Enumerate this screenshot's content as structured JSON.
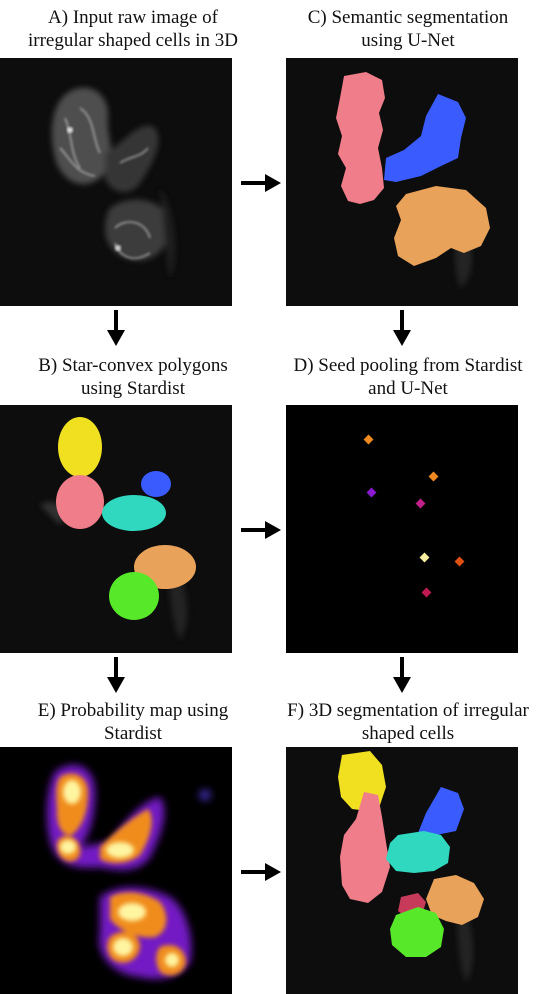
{
  "panels": [
    {
      "id": "A",
      "caption": [
        "A)  Input raw image of",
        "irregular shaped cells in 3D"
      ]
    },
    {
      "id": "C",
      "caption": [
        "C) Semantic segmentation",
        "using U-Net"
      ]
    },
    {
      "id": "B",
      "caption": [
        "B) Star-convex polygons",
        "using Stardist"
      ]
    },
    {
      "id": "D",
      "caption": [
        "D) Seed pooling from Stardist",
        "and U-Net"
      ]
    },
    {
      "id": "E",
      "caption": [
        "E) Probability map using",
        "Stardist"
      ]
    },
    {
      "id": "F",
      "caption": [
        "F) 3D segmentation of irregular",
        "shaped cells"
      ]
    }
  ],
  "colors": {
    "pink": "#f07d8a",
    "blue": "#3a5cff",
    "orange": "#e8a25a",
    "yellow": "#f0e020",
    "teal": "#30d8c0",
    "green": "#58e82a",
    "crimson": "#c83a5a",
    "seed_orange": "#f08a20",
    "seed_purple": "#8a1ad0",
    "seed_magenta": "#c0208a",
    "seed_pale": "#f8f0a0",
    "seed_red": "#e05010",
    "seed_dark": "#c01850"
  }
}
